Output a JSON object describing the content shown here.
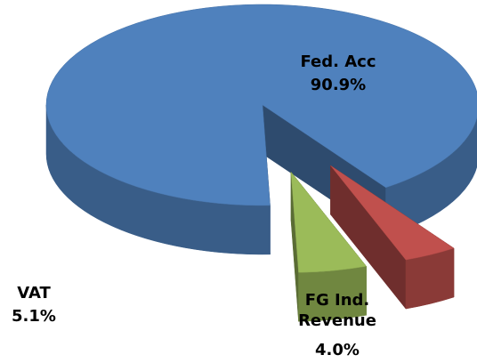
{
  "chart_data": {
    "type": "pie",
    "categories": [
      "Fed. Acc",
      "FG Ind. Revenue",
      "VAT"
    ],
    "values": [
      90.9,
      4.0,
      5.1
    ],
    "value_labels": [
      "90.9%",
      "4.0%",
      "5.1%"
    ],
    "colors": [
      "#4f81bd",
      "#c0504d",
      "#9bbb59"
    ]
  }
}
